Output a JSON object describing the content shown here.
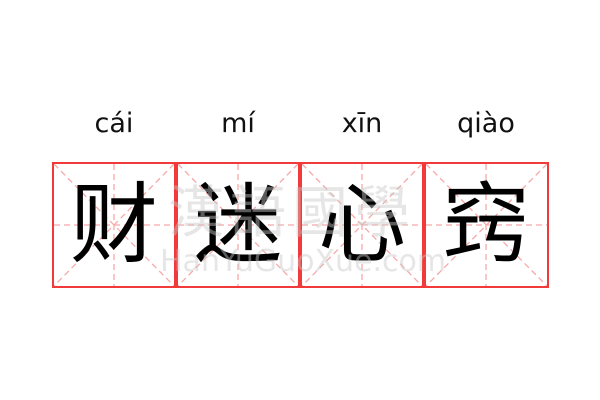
{
  "words": [
    {
      "pinyin": "cái",
      "char": "财"
    },
    {
      "pinyin": "mí",
      "char": "迷"
    },
    {
      "pinyin": "xīn",
      "char": "心"
    },
    {
      "pinyin": "qiào",
      "char": "窍"
    }
  ],
  "watermark": {
    "chinese": "漢語國學",
    "latin": "HanYuGuoXue.com"
  },
  "colors": {
    "grid_border": "#f23a3a",
    "guide_lines": "#f7a8a8"
  }
}
